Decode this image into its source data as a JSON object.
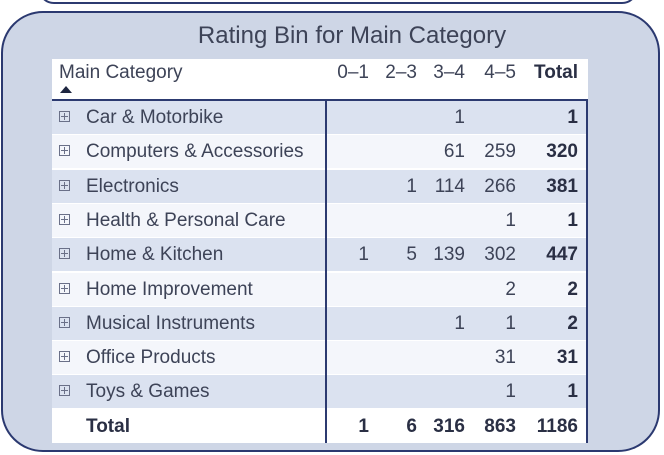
{
  "title": "Rating Bin for Main Category",
  "columns": {
    "main": "Main Category",
    "bins": [
      "0–1",
      "2–3",
      "3–4",
      "4–5"
    ],
    "total": "Total"
  },
  "rows": [
    {
      "category": "Car & Motorbike",
      "values": [
        "",
        "",
        "1",
        ""
      ],
      "total": "1"
    },
    {
      "category": "Computers & Accessories",
      "values": [
        "",
        "",
        "61",
        "259"
      ],
      "total": "320"
    },
    {
      "category": "Electronics",
      "values": [
        "",
        "1",
        "114",
        "266"
      ],
      "total": "381"
    },
    {
      "category": "Health & Personal Care",
      "values": [
        "",
        "",
        "",
        "1"
      ],
      "total": "1"
    },
    {
      "category": "Home & Kitchen",
      "values": [
        "1",
        "5",
        "139",
        "302"
      ],
      "total": "447"
    },
    {
      "category": "Home Improvement",
      "values": [
        "",
        "",
        "",
        "2"
      ],
      "total": "2"
    },
    {
      "category": "Musical Instruments",
      "values": [
        "",
        "",
        "1",
        "1"
      ],
      "total": "2"
    },
    {
      "category": "Office Products",
      "values": [
        "",
        "",
        "",
        "31"
      ],
      "total": "31"
    },
    {
      "category": "Toys & Games",
      "values": [
        "",
        "",
        "",
        "1"
      ],
      "total": "1"
    }
  ],
  "totals": {
    "label": "Total",
    "values": [
      "1",
      "6",
      "316",
      "863"
    ],
    "total": "1186"
  },
  "icons": {
    "expand": "plus-square-icon",
    "sort": "sort-ascending-icon"
  },
  "colors": {
    "border": "#2c3a70",
    "panel_bg": "#ced6e6",
    "row_alt": "#dbe2f0",
    "row": "#f4f6fb",
    "text": "#3d4357"
  }
}
